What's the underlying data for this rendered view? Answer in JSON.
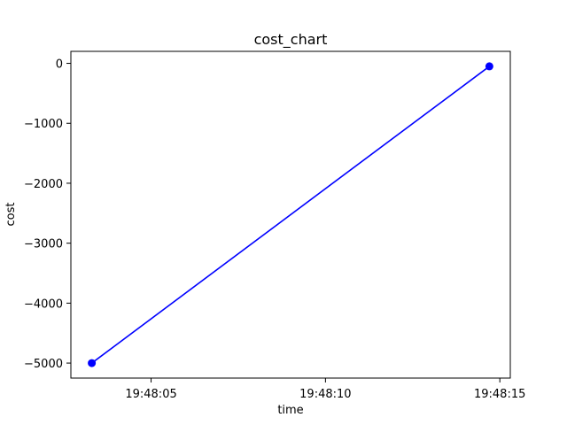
{
  "chart_data": {
    "type": "line",
    "title": "cost_chart",
    "xlabel": "time",
    "ylabel": "cost",
    "x": [
      "19:48:03.3",
      "19:48:14.7"
    ],
    "series": [
      {
        "values": [
          -5000,
          -50
        ],
        "color": "#0000ff",
        "marker": "circle"
      }
    ],
    "xlim": [
      "19:48:02.7",
      "19:48:15.3"
    ],
    "ylim": [
      -5250,
      200
    ],
    "xticks": [
      "19:48:05",
      "19:48:10",
      "19:48:15"
    ],
    "yticks": [
      0,
      -1000,
      -2000,
      -3000,
      -4000,
      -5000
    ],
    "ytick_labels": [
      "0",
      "−1000",
      "−2000",
      "−3000",
      "−4000",
      "−5000"
    ],
    "grid": false
  }
}
